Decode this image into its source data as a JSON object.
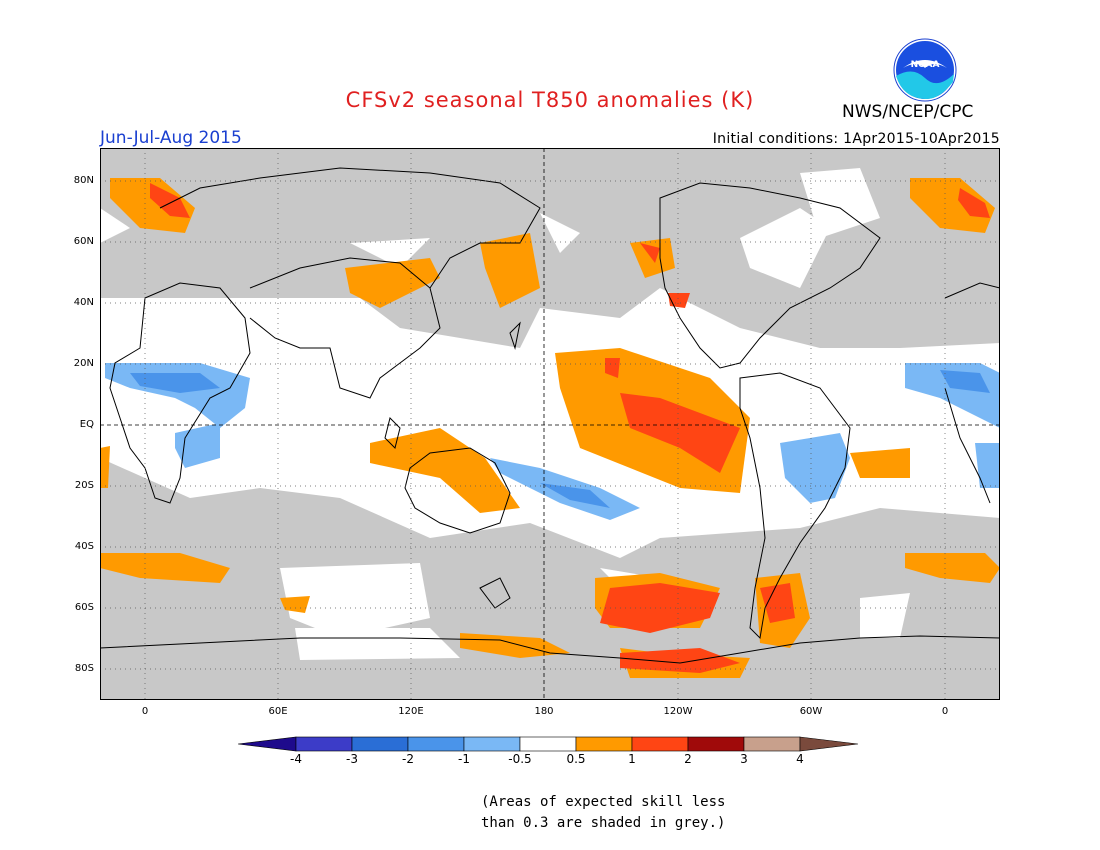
{
  "title": "CFSv2 seasonal T850 anomalies (K)",
  "period": "Jun-Jul-Aug 2015",
  "initial_conditions": "Initial conditions: 1Apr2015-10Apr2015",
  "agency": "NWS/NCEP/CPC",
  "logo_text": "NOAA",
  "footnote": {
    "line1": "(Areas of expected skill less",
    "line2": "than 0.3 are shaded in grey.)"
  },
  "map": {
    "lat_labels": [
      "80N",
      "60N",
      "40N",
      "20N",
      "EQ",
      "20S",
      "40S",
      "60S",
      "80S"
    ],
    "lon_labels": [
      "0",
      "60E",
      "120E",
      "180",
      "120W",
      "60W",
      "0"
    ]
  },
  "colorbar": {
    "labels": [
      "-4",
      "-3",
      "-2",
      "-1",
      "-0.5",
      "0.5",
      "1",
      "2",
      "3",
      "4"
    ],
    "colors": [
      "#1e0a8c",
      "#3c3cc8",
      "#2a6ed6",
      "#4a94ea",
      "#7ab8f5",
      "#ffffff",
      "#ff9a00",
      "#ff4514",
      "#a00a0a",
      "#c8a08c",
      "#7a4a3c"
    ]
  },
  "colors": {
    "skill_grey": "#c8c8c8",
    "warm_05_1": "#ff9a00",
    "warm_1_2": "#ff4514",
    "cool_05_1": "#7ab8f5",
    "cool_1_2": "#4a94ea"
  }
}
